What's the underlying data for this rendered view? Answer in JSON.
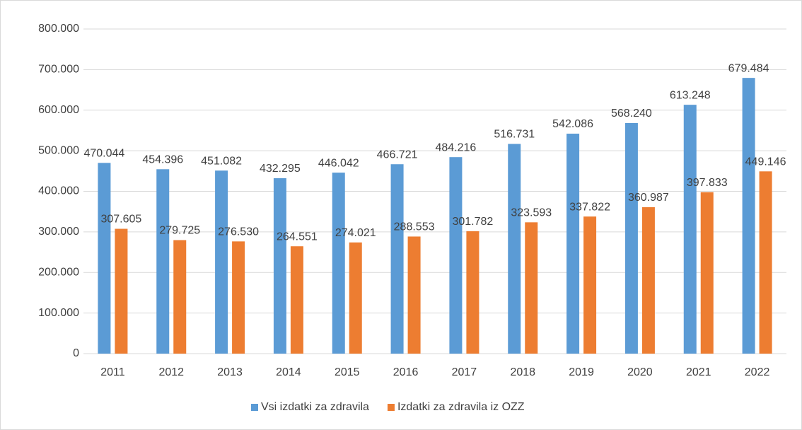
{
  "chart_data": {
    "type": "bar",
    "categories": [
      "2011",
      "2012",
      "2013",
      "2014",
      "2015",
      "2016",
      "2017",
      "2018",
      "2019",
      "2020",
      "2021",
      "2022"
    ],
    "series": [
      {
        "name": "Vsi izdatki za zdravila",
        "color": "#5b9bd5",
        "values": [
          470044,
          454396,
          451082,
          432295,
          446042,
          466721,
          484216,
          516731,
          542086,
          568240,
          613248,
          679484
        ],
        "value_labels": [
          "470.044",
          "454.396",
          "451.082",
          "432.295",
          "446.042",
          "466.721",
          "484.216",
          "516.731",
          "542.086",
          "568.240",
          "613.248",
          "679.484"
        ]
      },
      {
        "name": "Izdatki za zdravila iz OZZ",
        "color": "#ed7d31",
        "values": [
          307605,
          279725,
          276530,
          264551,
          274021,
          288553,
          301782,
          323593,
          337822,
          360987,
          397833,
          449146
        ],
        "value_labels": [
          "307.605",
          "279.725",
          "276.530",
          "264.551",
          "274.021",
          "288.553",
          "301.782",
          "323.593",
          "337.822",
          "360.987",
          "397.833",
          "449.146"
        ]
      }
    ],
    "ylim": [
      0,
      800000
    ],
    "yticks": [
      {
        "value": 0,
        "label": "0"
      },
      {
        "value": 100000,
        "label": "100.000"
      },
      {
        "value": 200000,
        "label": "200.000"
      },
      {
        "value": 300000,
        "label": "300.000"
      },
      {
        "value": 400000,
        "label": "400.000"
      },
      {
        "value": 500000,
        "label": "500.000"
      },
      {
        "value": 600000,
        "label": "600.000"
      },
      {
        "value": 700000,
        "label": "700.000"
      },
      {
        "value": 800000,
        "label": "800.000"
      }
    ],
    "grid": true,
    "legend": "bottom"
  }
}
